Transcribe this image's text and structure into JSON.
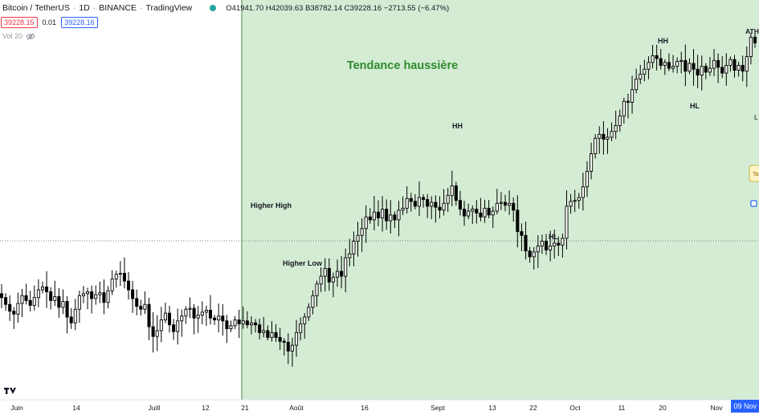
{
  "header": {
    "symbol": "Bitcoin / TetherUS",
    "interval": "1D",
    "exchange": "BINANCE",
    "source": "TradingView",
    "ohlc": {
      "o_label": "O",
      "o_value": "41941.70",
      "h_label": "H",
      "h_value": "42039.63",
      "l_label": "B",
      "l_value": "38782.14",
      "c_label": "C",
      "c_value": "39228.16",
      "change": "−2713.55 (−6.47%)"
    },
    "bid": "39228.15",
    "spread": "0.01",
    "ask": "39228.16",
    "volume_label": "Vol 20"
  },
  "colors": {
    "trend_fill": "#d5ecd4",
    "trend_text": "#2e8b2e",
    "candle": "#000000",
    "bid": "#f23645",
    "ask": "#2962ff",
    "status_dot": "#26a69a"
  },
  "icons": [
    "eye-off-icon",
    "tradingview-logo-icon",
    "status-dot-icon"
  ],
  "chart_data": {
    "type": "candlestick",
    "trend_label": "Tendance haussière",
    "x_tick_labels": [
      "Juin",
      "14",
      "Juill",
      "12",
      "21",
      "Août",
      "16",
      "Sept",
      "13",
      "22",
      "Oct",
      "11",
      "20",
      "Nov"
    ],
    "last_tick_label": "09 Nov",
    "annotations": [
      "Higher High",
      "Higher Low",
      "HH",
      "HL",
      "HH",
      "HL"
    ],
    "right_marks": [
      "ATH",
      "L",
      "Ta"
    ],
    "horizontal_line_price": 39228.16,
    "closes": [
      38.2,
      37.5,
      36.8,
      36.5,
      37.6,
      38.4,
      37.9,
      37.4,
      38.2,
      39.0,
      39.3,
      38.8,
      37.9,
      38.3,
      37.2,
      37.8,
      36.2,
      35.6,
      37.0,
      38.4,
      38.6,
      38.8,
      38.1,
      38.5,
      38.7,
      37.7,
      38.9,
      40.1,
      40.6,
      40.7,
      39.9,
      39.0,
      38.1,
      37.3,
      37.0,
      37.5,
      35.2,
      34.2,
      34.8,
      35.9,
      36.6,
      35.4,
      34.7,
      35.8,
      36.3,
      37.0,
      37.1,
      36.1,
      36.4,
      36.7,
      36.9,
      36.1,
      35.9,
      36.3,
      35.8,
      35.0,
      35.3,
      35.9,
      35.5,
      35.8,
      35.4,
      35.6,
      35.4,
      34.6,
      34.8,
      34.1,
      34.6,
      34.1,
      33.7,
      33.6,
      32.7,
      33.3,
      34.6,
      35.5,
      36.2,
      37.2,
      38.4,
      39.6,
      40.4,
      41.2,
      39.8,
      40.3,
      40.9,
      40.4,
      42.3,
      42.7,
      44.0,
      44.6,
      45.3,
      46.5,
      46.2,
      47.0,
      46.4,
      47.3,
      46.1,
      46.7,
      46.2,
      47.2,
      47.4,
      48.4,
      48.1,
      47.6,
      48.5,
      48.3,
      47.6,
      48.0,
      47.5,
      47.2,
      47.9,
      48.7,
      49.7,
      48.2,
      47.3,
      46.6,
      47.1,
      47.3,
      46.9,
      46.5,
      47.4,
      46.7,
      47.1,
      47.9,
      48.0,
      47.7,
      47.9,
      47.2,
      45.0,
      44.6,
      43.0,
      42.4,
      42.9,
      43.5,
      44.0,
      43.1,
      43.5,
      43.8,
      43.6,
      44.3,
      47.6,
      48.1,
      48.2,
      48.5,
      49.6,
      51.2,
      53.0,
      54.6,
      55.0,
      54.5,
      54.7,
      55.3,
      55.9,
      56.9,
      58.4,
      58.3,
      59.6,
      60.7,
      61.2,
      61.7,
      62.4,
      63.1,
      62.8,
      62.1,
      62.4,
      61.8,
      62.0,
      62.5,
      62.6,
      61.5,
      62.3,
      61.7,
      61.1,
      62.0,
      61.4,
      61.8,
      62.6,
      61.9,
      61.3,
      62.1,
      62.7,
      61.6,
      62.1,
      61.5,
      63.0,
      65.0,
      64.4
    ],
    "price_scale": {
      "min": 30,
      "max": 68,
      "unit": "kUSDT (estimated)"
    }
  }
}
